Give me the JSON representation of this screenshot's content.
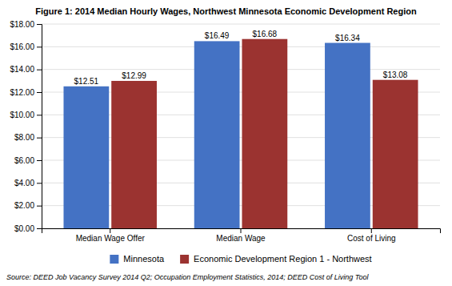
{
  "chart_data": {
    "type": "bar",
    "title": "Figure 1: 2014 Median Hourly Wages, Northwest Minnesota Economic Development Region",
    "categories": [
      "Median Wage Offer",
      "Median Wage",
      "Cost of Living"
    ],
    "series": [
      {
        "name": "Minnesota",
        "color": "#4472C4",
        "values": [
          12.51,
          16.49,
          16.34
        ],
        "value_labels": [
          "$12.51",
          "$16.49",
          "$16.34"
        ]
      },
      {
        "name": "Economic Development Region 1 - Northwest",
        "color": "#9B3330",
        "values": [
          12.99,
          16.68,
          13.08
        ],
        "value_labels": [
          "$12.99",
          "$16.68",
          "$13.08"
        ]
      }
    ],
    "ylim": [
      0,
      18
    ],
    "yticks": [
      {
        "value": 0,
        "label": "$0.00"
      },
      {
        "value": 2,
        "label": "$2.00"
      },
      {
        "value": 4,
        "label": "$4.00"
      },
      {
        "value": 6,
        "label": "$6.00"
      },
      {
        "value": 8,
        "label": "$8.00"
      },
      {
        "value": 10,
        "label": "$10.00"
      },
      {
        "value": 12,
        "label": "$12.00"
      },
      {
        "value": 14,
        "label": "$14.00"
      },
      {
        "value": 16,
        "label": "$16.00"
      },
      {
        "value": 18,
        "label": "$18.00"
      }
    ],
    "grid": true,
    "legend": "bottom",
    "data_labels": true,
    "annotations": [
      "Source: DEED Job Vacancy Survey 2014 Q2; Occupation Employment Statistics, 2014; DEED Cost of Living Tool"
    ]
  }
}
